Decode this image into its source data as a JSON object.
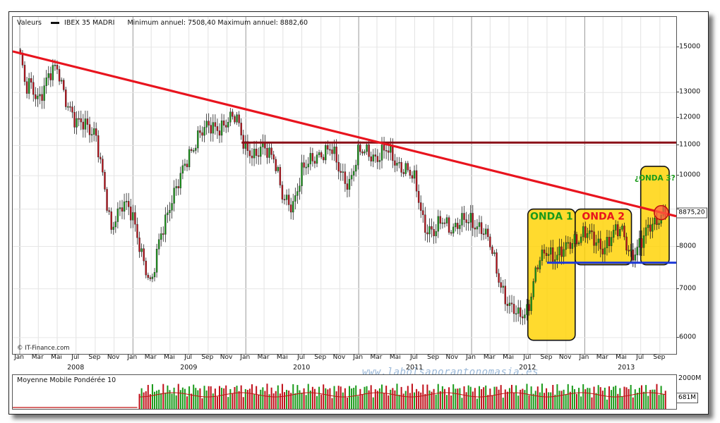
{
  "header": {
    "prefix": "Valeurs",
    "instrument": "IBEX 35 MADRI",
    "range": "Minimum annuel: 7508,40 Maximum annuel: 8882,60"
  },
  "source": "© IT-Finance.com",
  "watermark": "www.labolsaporantonomasia.es",
  "last_price": "8875,20",
  "volume": {
    "title": "Moyenne Mobile Pondérée 10",
    "top_label": "2000M",
    "current_label": "681M"
  },
  "colors": {
    "up": "#1a9a1a",
    "down": "#c0101a",
    "trendline": "#e8141e",
    "resistance": "#8b1018",
    "support": "#1e3ad8",
    "box_fill": "#ffd200",
    "volume_ma": "#c01010"
  },
  "chart_data": {
    "type": "candlestick",
    "y_scale": "log",
    "ylim": [
      5700,
      16500
    ],
    "yticks": [
      6000,
      7000,
      8000,
      9000,
      10000,
      11000,
      12000,
      13000,
      15000
    ],
    "ytick_labels": [
      "6000",
      "7000",
      "8000",
      "",
      "10000",
      "11000",
      "12000",
      "13000",
      "15000"
    ],
    "month_labels": [
      "Jan",
      "Mar",
      "Mai",
      "Jul",
      "Sep",
      "Nov",
      "Jan",
      "Mar",
      "Mai",
      "Jul",
      "Sep",
      "Nov",
      "Jan",
      "Mar",
      "Mai",
      "Jul",
      "Sep",
      "Nov",
      "Jan",
      "Mar",
      "Mai",
      "Jul",
      "Sep",
      "Nov",
      "Jan",
      "Mar",
      "Mai",
      "Jul",
      "Sep",
      "Nov",
      "Jan",
      "Mar",
      "Mai",
      "Jul",
      "Sep"
    ],
    "year_labels": [
      "2008",
      "2009",
      "2010",
      "2011",
      "2012",
      "2013"
    ],
    "x_range": [
      "2008-01",
      "2013-10"
    ],
    "price_path": [
      [
        "2008-01",
        14800
      ],
      [
        "2008-01-20",
        13000
      ],
      [
        "2008-02",
        13300
      ],
      [
        "2008-03",
        12800
      ],
      [
        "2008-04",
        13600
      ],
      [
        "2008-05",
        14000
      ],
      [
        "2008-06",
        12700
      ],
      [
        "2008-07",
        11700
      ],
      [
        "2008-08",
        11800
      ],
      [
        "2008-09",
        11500
      ],
      [
        "2008-10",
        9500
      ],
      [
        "2008-10-25",
        8300
      ],
      [
        "2008-11",
        8800
      ],
      [
        "2008-12",
        9200
      ],
      [
        "2009-01",
        8700
      ],
      [
        "2009-02",
        7800
      ],
      [
        "2009-03",
        7000
      ],
      [
        "2009-04",
        8300
      ],
      [
        "2009-05",
        9200
      ],
      [
        "2009-06",
        9800
      ],
      [
        "2009-07",
        10700
      ],
      [
        "2009-08",
        11400
      ],
      [
        "2009-09",
        11600
      ],
      [
        "2009-10",
        11700
      ],
      [
        "2009-11",
        11800
      ],
      [
        "2009-12",
        12000
      ],
      [
        "2010-01",
        11000
      ],
      [
        "2010-02",
        10500
      ],
      [
        "2010-03",
        11000
      ],
      [
        "2010-04",
        10700
      ],
      [
        "2010-05",
        9200
      ],
      [
        "2010-06",
        9100
      ],
      [
        "2010-07",
        10200
      ],
      [
        "2010-08",
        10400
      ],
      [
        "2010-09",
        10800
      ],
      [
        "2010-10",
        10900
      ],
      [
        "2010-11",
        10100
      ],
      [
        "2010-12",
        9800
      ],
      [
        "2011-01",
        10700
      ],
      [
        "2011-02",
        10800
      ],
      [
        "2011-03",
        10600
      ],
      [
        "2011-04",
        10800
      ],
      [
        "2011-05",
        10500
      ],
      [
        "2011-06",
        10200
      ],
      [
        "2011-07",
        9800
      ],
      [
        "2011-08",
        8600
      ],
      [
        "2011-09",
        8300
      ],
      [
        "2011-10",
        8700
      ],
      [
        "2011-11",
        8500
      ],
      [
        "2011-12",
        8600
      ],
      [
        "2012-01",
        8700
      ],
      [
        "2012-02",
        8500
      ],
      [
        "2012-03",
        8000
      ],
      [
        "2012-04",
        7200
      ],
      [
        "2012-05",
        6600
      ],
      [
        "2012-06",
        6400
      ],
      [
        "2012-07",
        6600
      ],
      [
        "2012-08",
        7500
      ],
      [
        "2012-09",
        7900
      ],
      [
        "2012-10",
        7800
      ],
      [
        "2012-11",
        7900
      ],
      [
        "2012-12",
        8200
      ],
      [
        "2013-01",
        8400
      ],
      [
        "2013-02",
        8100
      ],
      [
        "2013-03",
        8000
      ],
      [
        "2013-04",
        8300
      ],
      [
        "2013-05",
        8400
      ],
      [
        "2013-06",
        7800
      ],
      [
        "2013-07",
        8000
      ],
      [
        "2013-08",
        8600
      ],
      [
        "2013-09",
        8800
      ],
      [
        "2013-09-20",
        8875
      ]
    ],
    "annotations": {
      "trendline": {
        "from": [
          "2008-01",
          14800
        ],
        "to": [
          "2013-10",
          8800
        ]
      },
      "resistance": {
        "from": [
          "2010-01",
          11100
        ],
        "to": [
          "2013-10",
          11100
        ]
      },
      "support": {
        "from": [
          "2012-09",
          7600
        ],
        "to": [
          "2013-10",
          7600
        ]
      },
      "boxes": [
        {
          "label": "ONDA 1",
          "from": [
            "2012-07",
            5950
          ],
          "to": [
            "2012-12",
            9000
          ]
        },
        {
          "label": "ONDA 2",
          "from": [
            "2012-12",
            7550
          ],
          "to": [
            "2013-06",
            9000
          ]
        },
        {
          "label": "¿ONDA 3?",
          "from": [
            "2013-07",
            7550
          ],
          "to": [
            "2013-10",
            10300
          ]
        }
      ],
      "circle": {
        "at": [
          "2013-09",
          8900
        ]
      }
    }
  }
}
